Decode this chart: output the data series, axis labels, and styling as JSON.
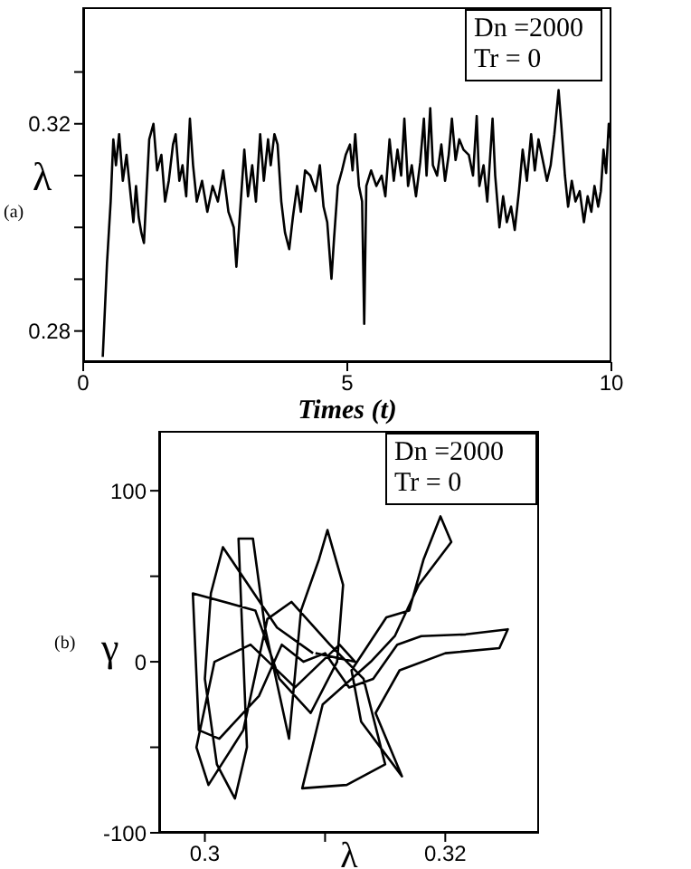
{
  "chart_data": [
    {
      "type": "line",
      "xlabel": "Times (t)",
      "ylabel": "λ",
      "annotations": [
        "(a)",
        "Dn =2000\nTr = 0"
      ],
      "xlim": [
        0,
        10
      ],
      "xticks": [
        0,
        5,
        10
      ],
      "ylim": [
        0.274,
        0.3425
      ],
      "yticks": [
        0.28,
        {
          "value": 0.29,
          "label": null
        },
        {
          "value": 0.3,
          "label": null
        },
        {
          "value": 0.31,
          "label": null
        },
        0.32,
        {
          "value": 0.33,
          "label": null
        }
      ],
      "grid": false,
      "legend": false,
      "marker": "none",
      "line_style": "solid",
      "series": [
        {
          "color": "#000000",
          "x": [
            0.37,
            0.45,
            0.52,
            0.57,
            0.62,
            0.68,
            0.75,
            0.82,
            0.9,
            0.95,
            1.0,
            1.05,
            1.1,
            1.15,
            1.25,
            1.33,
            1.4,
            1.48,
            1.55,
            1.62,
            1.7,
            1.75,
            1.82,
            1.88,
            1.95,
            2.02,
            2.08,
            2.15,
            2.25,
            2.35,
            2.45,
            2.55,
            2.65,
            2.75,
            2.85,
            2.9,
            2.97,
            3.05,
            3.12,
            3.2,
            3.27,
            3.35,
            3.42,
            3.5,
            3.55,
            3.62,
            3.68,
            3.75,
            3.82,
            3.9,
            3.97,
            4.05,
            4.12,
            4.2,
            4.3,
            4.4,
            4.48,
            4.55,
            4.62,
            4.7,
            4.75,
            4.82,
            4.9,
            4.97,
            5.05,
            5.1,
            5.15,
            5.22,
            5.28,
            5.32,
            5.36,
            5.45,
            5.55,
            5.65,
            5.72,
            5.8,
            5.88,
            5.95,
            6.02,
            6.08,
            6.15,
            6.22,
            6.3,
            6.38,
            6.45,
            6.5,
            6.57,
            6.62,
            6.7,
            6.78,
            6.85,
            6.92,
            6.98,
            7.05,
            7.12,
            7.2,
            7.3,
            7.38,
            7.45,
            7.5,
            7.58,
            7.65,
            7.75,
            7.8,
            7.88,
            7.95,
            8.02,
            8.1,
            8.17,
            8.25,
            8.32,
            8.4,
            8.48,
            8.55,
            8.62,
            8.7,
            8.78,
            8.85,
            8.92,
            9.0,
            9.05,
            9.12,
            9.18,
            9.25,
            9.32,
            9.4,
            9.48,
            9.55,
            9.62,
            9.68,
            9.75,
            9.8,
            9.85,
            9.9,
            9.95,
            10.0
          ],
          "values": [
            0.275,
            0.293,
            0.305,
            0.317,
            0.312,
            0.318,
            0.309,
            0.314,
            0.306,
            0.301,
            0.308,
            0.302,
            0.299,
            0.297,
            0.317,
            0.32,
            0.311,
            0.314,
            0.305,
            0.309,
            0.316,
            0.318,
            0.309,
            0.312,
            0.306,
            0.321,
            0.312,
            0.305,
            0.309,
            0.303,
            0.308,
            0.305,
            0.311,
            0.303,
            0.3,
            0.2924,
            0.303,
            0.315,
            0.306,
            0.312,
            0.305,
            0.318,
            0.309,
            0.317,
            0.312,
            0.318,
            0.316,
            0.305,
            0.299,
            0.2958,
            0.302,
            0.308,
            0.303,
            0.311,
            0.31,
            0.307,
            0.312,
            0.304,
            0.301,
            0.2901,
            0.298,
            0.308,
            0.311,
            0.314,
            0.316,
            0.311,
            0.318,
            0.308,
            0.305,
            0.2814,
            0.308,
            0.311,
            0.308,
            0.31,
            0.306,
            0.317,
            0.309,
            0.315,
            0.31,
            0.321,
            0.308,
            0.312,
            0.306,
            0.3125,
            0.321,
            0.31,
            0.323,
            0.312,
            0.31,
            0.316,
            0.309,
            0.314,
            0.321,
            0.313,
            0.317,
            0.315,
            0.314,
            0.31,
            0.3215,
            0.308,
            0.312,
            0.305,
            0.321,
            0.31,
            0.3,
            0.306,
            0.301,
            0.304,
            0.2995,
            0.307,
            0.315,
            0.309,
            0.318,
            0.311,
            0.317,
            0.313,
            0.309,
            0.312,
            0.318,
            0.3265,
            0.32,
            0.31,
            0.304,
            0.309,
            0.305,
            0.307,
            0.301,
            0.306,
            0.303,
            0.308,
            0.304,
            0.307,
            0.315,
            0.3105,
            0.32,
            0.316
          ]
        }
      ]
    },
    {
      "type": "line",
      "xlabel": "λ",
      "ylabel": "γ",
      "annotations": [
        "(b)",
        "Dn =2000\nTr = 0"
      ],
      "xlim": [
        0.2962,
        0.3278
      ],
      "xticks": [
        0.3,
        {
          "value": 0.31,
          "label": null
        },
        0.32
      ],
      "ylim": [
        -100,
        135
      ],
      "yticks": [
        -100,
        {
          "value": -50,
          "label": null
        },
        0,
        {
          "value": 50,
          "label": null
        },
        100
      ],
      "grid": false,
      "legend": false,
      "marker": "none",
      "line_style": "solid",
      "series": [
        {
          "color": "#000000",
          "x": [
            0.309,
            0.306,
            0.3015,
            0.3005,
            0.3,
            0.301,
            0.3025,
            0.3035,
            0.3028,
            0.304,
            0.305,
            0.307,
            0.308,
            0.3095,
            0.3102,
            0.3115,
            0.311,
            0.3088,
            0.3062,
            0.3042,
            0.299,
            0.2995,
            0.3012,
            0.3045,
            0.3064,
            0.3082,
            0.31,
            0.312,
            0.314,
            0.316,
            0.318,
            0.3217,
            0.3252,
            0.3245,
            0.32,
            0.3162,
            0.3142,
            0.3164,
            0.313,
            0.3122,
            0.3151,
            0.317,
            0.3182,
            0.3196,
            0.3205,
            0.3178,
            0.3158,
            0.3138,
            0.3098,
            0.3081,
            0.3118,
            0.315,
            0.3132,
            0.3104,
            0.3072,
            0.3052,
            0.3032,
            0.3003,
            0.2993,
            0.3008,
            0.3038,
            0.3075,
            0.3112,
            0.3125,
            0.3092
          ],
          "values": [
            5,
            20,
            67,
            40,
            -10,
            -60,
            -80,
            -50,
            72,
            72,
            20,
            -45,
            30,
            60,
            77,
            45,
            0,
            -30,
            -10,
            30,
            40,
            -40,
            -45,
            -20,
            10,
            0,
            5,
            -15,
            -10,
            10,
            15,
            16,
            19,
            8,
            5,
            -5,
            -30,
            -67,
            -35,
            -5,
            26,
            30,
            60,
            85,
            70,
            45,
            15,
            0,
            -25,
            -74,
            -72,
            -60,
            -10,
            10,
            35,
            25,
            -40,
            -72,
            -50,
            0,
            10,
            -15,
            10,
            0,
            5
          ]
        }
      ]
    }
  ]
}
